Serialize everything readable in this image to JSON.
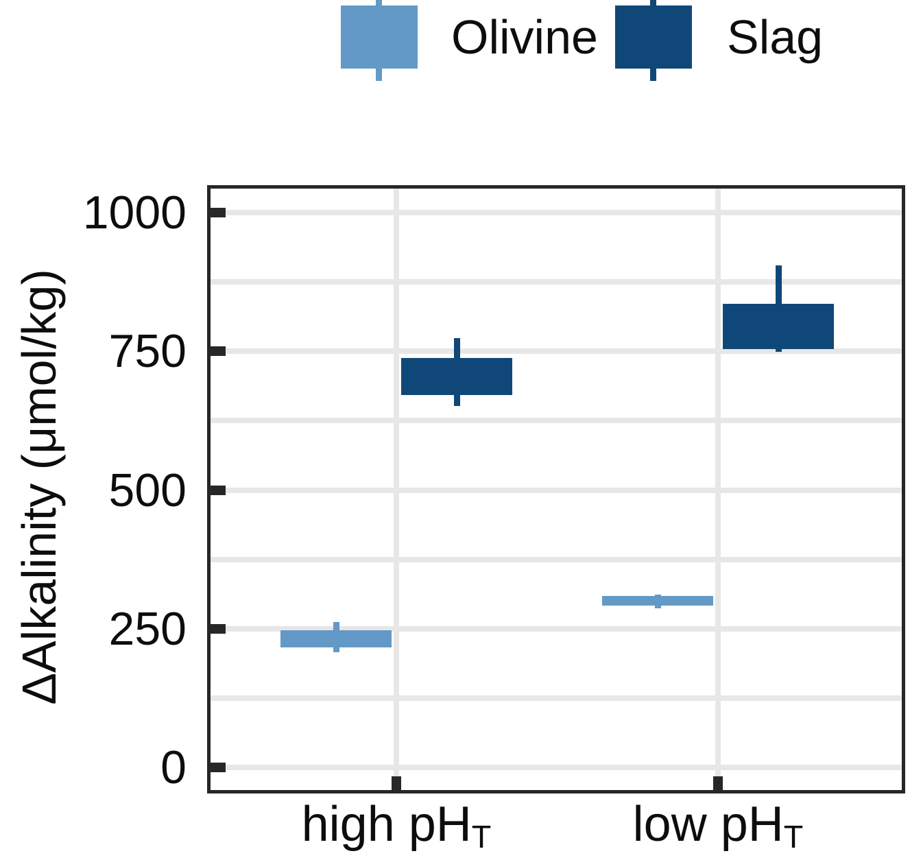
{
  "figure": {
    "background": "#ffffff"
  },
  "legend": {
    "items": [
      {
        "label": "Olivine",
        "color": "#6399c6"
      },
      {
        "label": "Slag",
        "color": "#0f4878"
      }
    ]
  },
  "y_axis": {
    "label": "ΔAlkalinity (μmol/kg)",
    "ticks": [
      {
        "value": 1000,
        "label": "1000"
      },
      {
        "value": 750,
        "label": "750"
      },
      {
        "value": 500,
        "label": "500"
      },
      {
        "value": 250,
        "label": "250"
      },
      {
        "value": 0,
        "label": "0"
      }
    ]
  },
  "x_axis": {
    "categories": [
      {
        "text": "high pH",
        "sub": "T"
      },
      {
        "text": "low pH",
        "sub": "T"
      }
    ]
  },
  "chart_data": {
    "type": "boxplot",
    "title": "",
    "xlabel": "",
    "ylabel": "ΔAlkalinity (μmol/kg)",
    "ylim": [
      0,
      1000
    ],
    "ytick_step": 250,
    "grid_step": 125,
    "grid": "on",
    "legend_position": "top-center",
    "categories": [
      "high pH_T",
      "low pH_T"
    ],
    "series": [
      {
        "name": "Olivine",
        "color": "#6399c6",
        "boxes": [
          {
            "category": "high pH_T",
            "whisker_low": 208,
            "box_low": 216,
            "box_high": 247,
            "whisker_high": 262
          },
          {
            "category": "low pH_T",
            "whisker_low": 287,
            "box_low": 292,
            "box_high": 309,
            "whisker_high": 311
          }
        ]
      },
      {
        "name": "Slag",
        "color": "#0f4878",
        "boxes": [
          {
            "category": "high pH_T",
            "whisker_low": 651,
            "box_low": 671,
            "box_high": 738,
            "whisker_high": 774
          },
          {
            "category": "low pH_T",
            "whisker_low": 749,
            "box_low": 754,
            "box_high": 836,
            "whisker_high": 905
          }
        ]
      }
    ]
  }
}
